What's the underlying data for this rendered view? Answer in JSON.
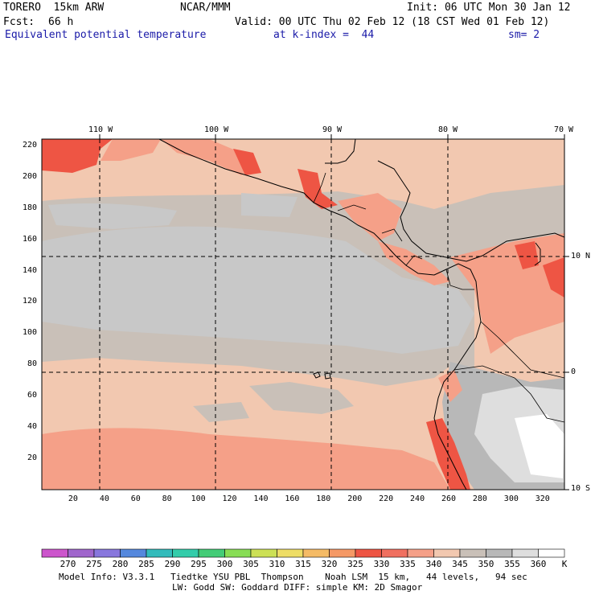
{
  "header": {
    "model_name": "TORERO  15km ARW",
    "org": "NCAR/MMM",
    "init": "Init: 06 UTC Mon 30 Jan 12",
    "fcst_label": "Fcst:",
    "fcst_value": "66 h",
    "valid": "Valid: 00 UTC Thu 02 Feb 12 (18 CST Wed 01 Feb 12)",
    "field": "Equivalent potential temperature",
    "level": "at k-index =  44",
    "smooth": "sm= 2"
  },
  "top_axis": [
    "110 W",
    "100 W",
    "90 W",
    "80 W",
    "70 W"
  ],
  "right_axis": [
    "10 N",
    "0",
    "10 S"
  ],
  "y_ticks": [
    220,
    200,
    180,
    160,
    140,
    120,
    100,
    80,
    60,
    40,
    20
  ],
  "x_ticks": [
    20,
    40,
    60,
    80,
    100,
    120,
    140,
    160,
    180,
    200,
    220,
    240,
    260,
    280,
    300,
    320
  ],
  "colorbar": {
    "labels": [
      "270",
      "275",
      "280",
      "285",
      "290",
      "295",
      "300",
      "305",
      "310",
      "315",
      "320",
      "325",
      "330",
      "335",
      "340",
      "345",
      "350",
      "355",
      "360"
    ],
    "unit": "K",
    "colors": [
      "#cc55cc",
      "#a066cc",
      "#8877dd",
      "#5588dd",
      "#33bbbb",
      "#33ccaa",
      "#44cc77",
      "#88dd55",
      "#cce055",
      "#eedd66",
      "#f5bb66",
      "#f59966",
      "#ee5544",
      "#f07060",
      "#f5a088",
      "#f2c8b0",
      "#c9c0b8",
      "#b8b8b8",
      "#dedede",
      "#ffffff"
    ]
  },
  "footer": {
    "line1": "Model Info: V3.3.1   Tiedtke YSU PBL  Thompson    Noah LSM  15 km,   44 levels,   94 sec",
    "line2": "LW: Godd SW: Goddard DIFF: simple KM: 2D Smagor"
  }
}
